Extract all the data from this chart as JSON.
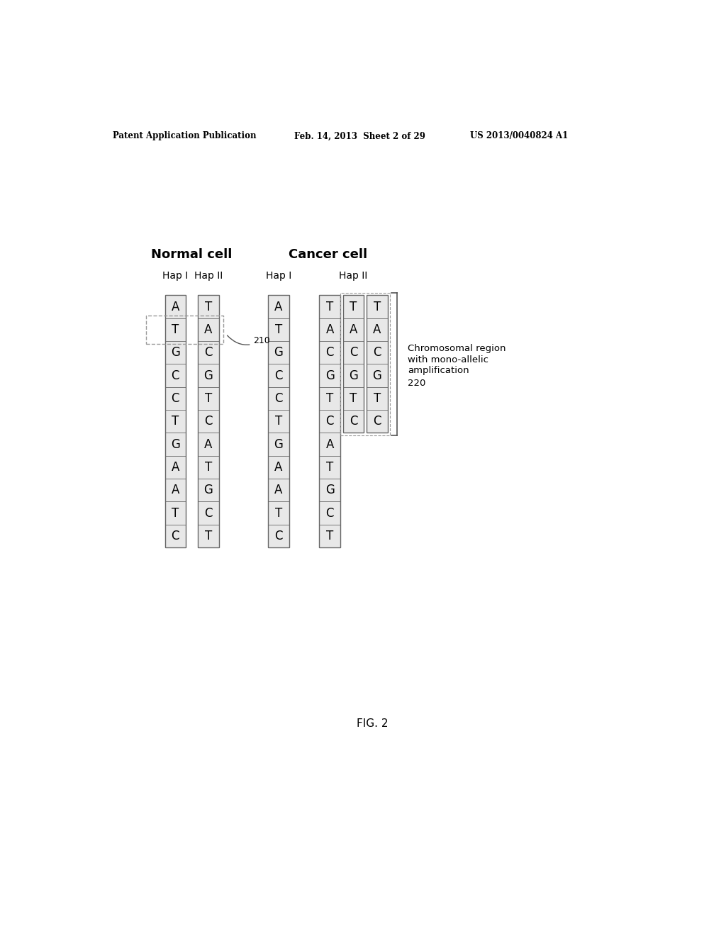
{
  "patent_left": "Patent Application Publication",
  "patent_mid": "Feb. 14, 2013  Sheet 2 of 29",
  "patent_right": "US 2013/0040824 A1",
  "normal_cell_label": "Normal cell",
  "cancer_cell_label": "Cancer cell",
  "normal_hap1": [
    "A",
    "T",
    "G",
    "C",
    "C",
    "T",
    "G",
    "A",
    "A",
    "T",
    "C"
  ],
  "normal_hap2": [
    "T",
    "A",
    "C",
    "G",
    "T",
    "C",
    "A",
    "T",
    "G",
    "C",
    "T"
  ],
  "cancer_hap1": [
    "A",
    "T",
    "G",
    "C",
    "C",
    "T",
    "G",
    "A",
    "A",
    "T",
    "C"
  ],
  "cancer_hap2_col1": [
    "T",
    "A",
    "C",
    "G",
    "T",
    "C",
    "A",
    "T",
    "G",
    "C",
    "T"
  ],
  "cancer_hap2_col2": [
    "T",
    "A",
    "C",
    "G",
    "T",
    "C"
  ],
  "cancer_hap2_col3": [
    "T",
    "A",
    "C",
    "G",
    "T",
    "C"
  ],
  "amplified_rows": 6,
  "snp_label": "210",
  "amplification_label_line1": "Chromosomal region",
  "amplification_label_line2": "with mono-allelic",
  "amplification_label_line3": "amplification",
  "amplification_label_line4": "220",
  "fig_label": "FIG. 2",
  "bg_color": "#ffffff",
  "col_bg": "#e8e8e8",
  "col_border": "#666666",
  "dashed_border": "#999999",
  "text_color": "#000000"
}
